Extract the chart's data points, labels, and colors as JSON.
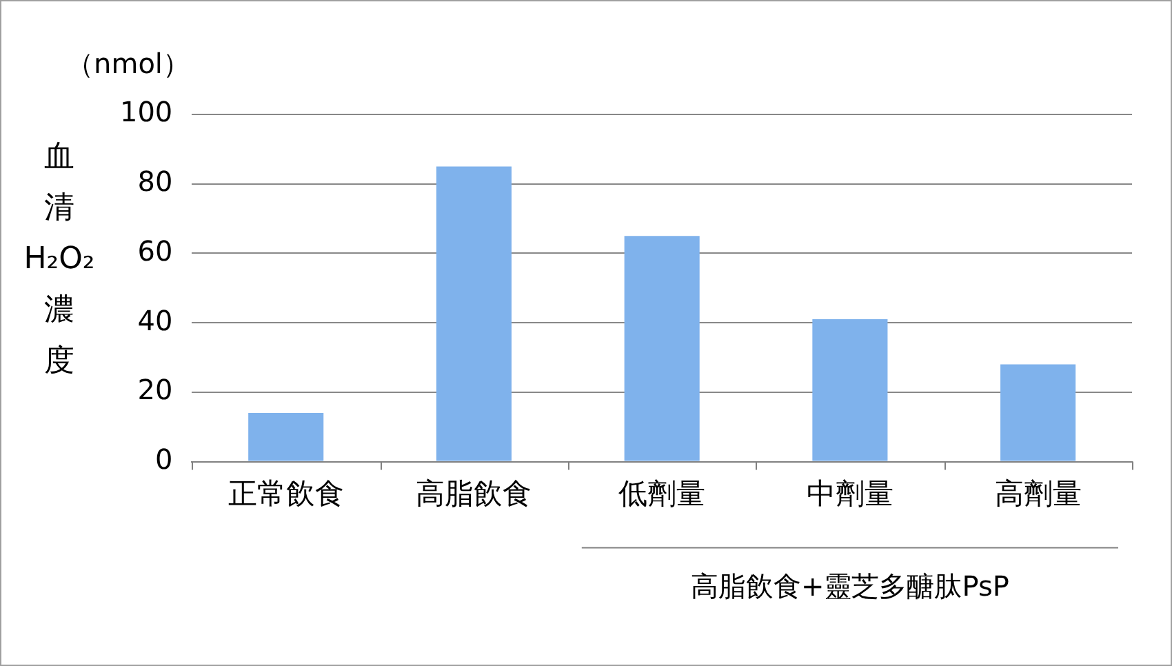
{
  "chart_data": {
    "type": "bar",
    "categories": [
      "正常飲食",
      "高脂飲食",
      "低劑量",
      "中劑量",
      "高劑量"
    ],
    "values": [
      14,
      85,
      65,
      41,
      28
    ],
    "color": "#7fb2ec",
    "ylabel": "血清H₂O₂濃度",
    "ylim": [
      0,
      100
    ],
    "yticks": [
      0,
      20,
      40,
      60,
      80,
      100
    ],
    "grid": "y",
    "legend": false,
    "annotations": [
      "（nmol）",
      "高脂飲食+靈芝多醣肽PsP"
    ]
  }
}
